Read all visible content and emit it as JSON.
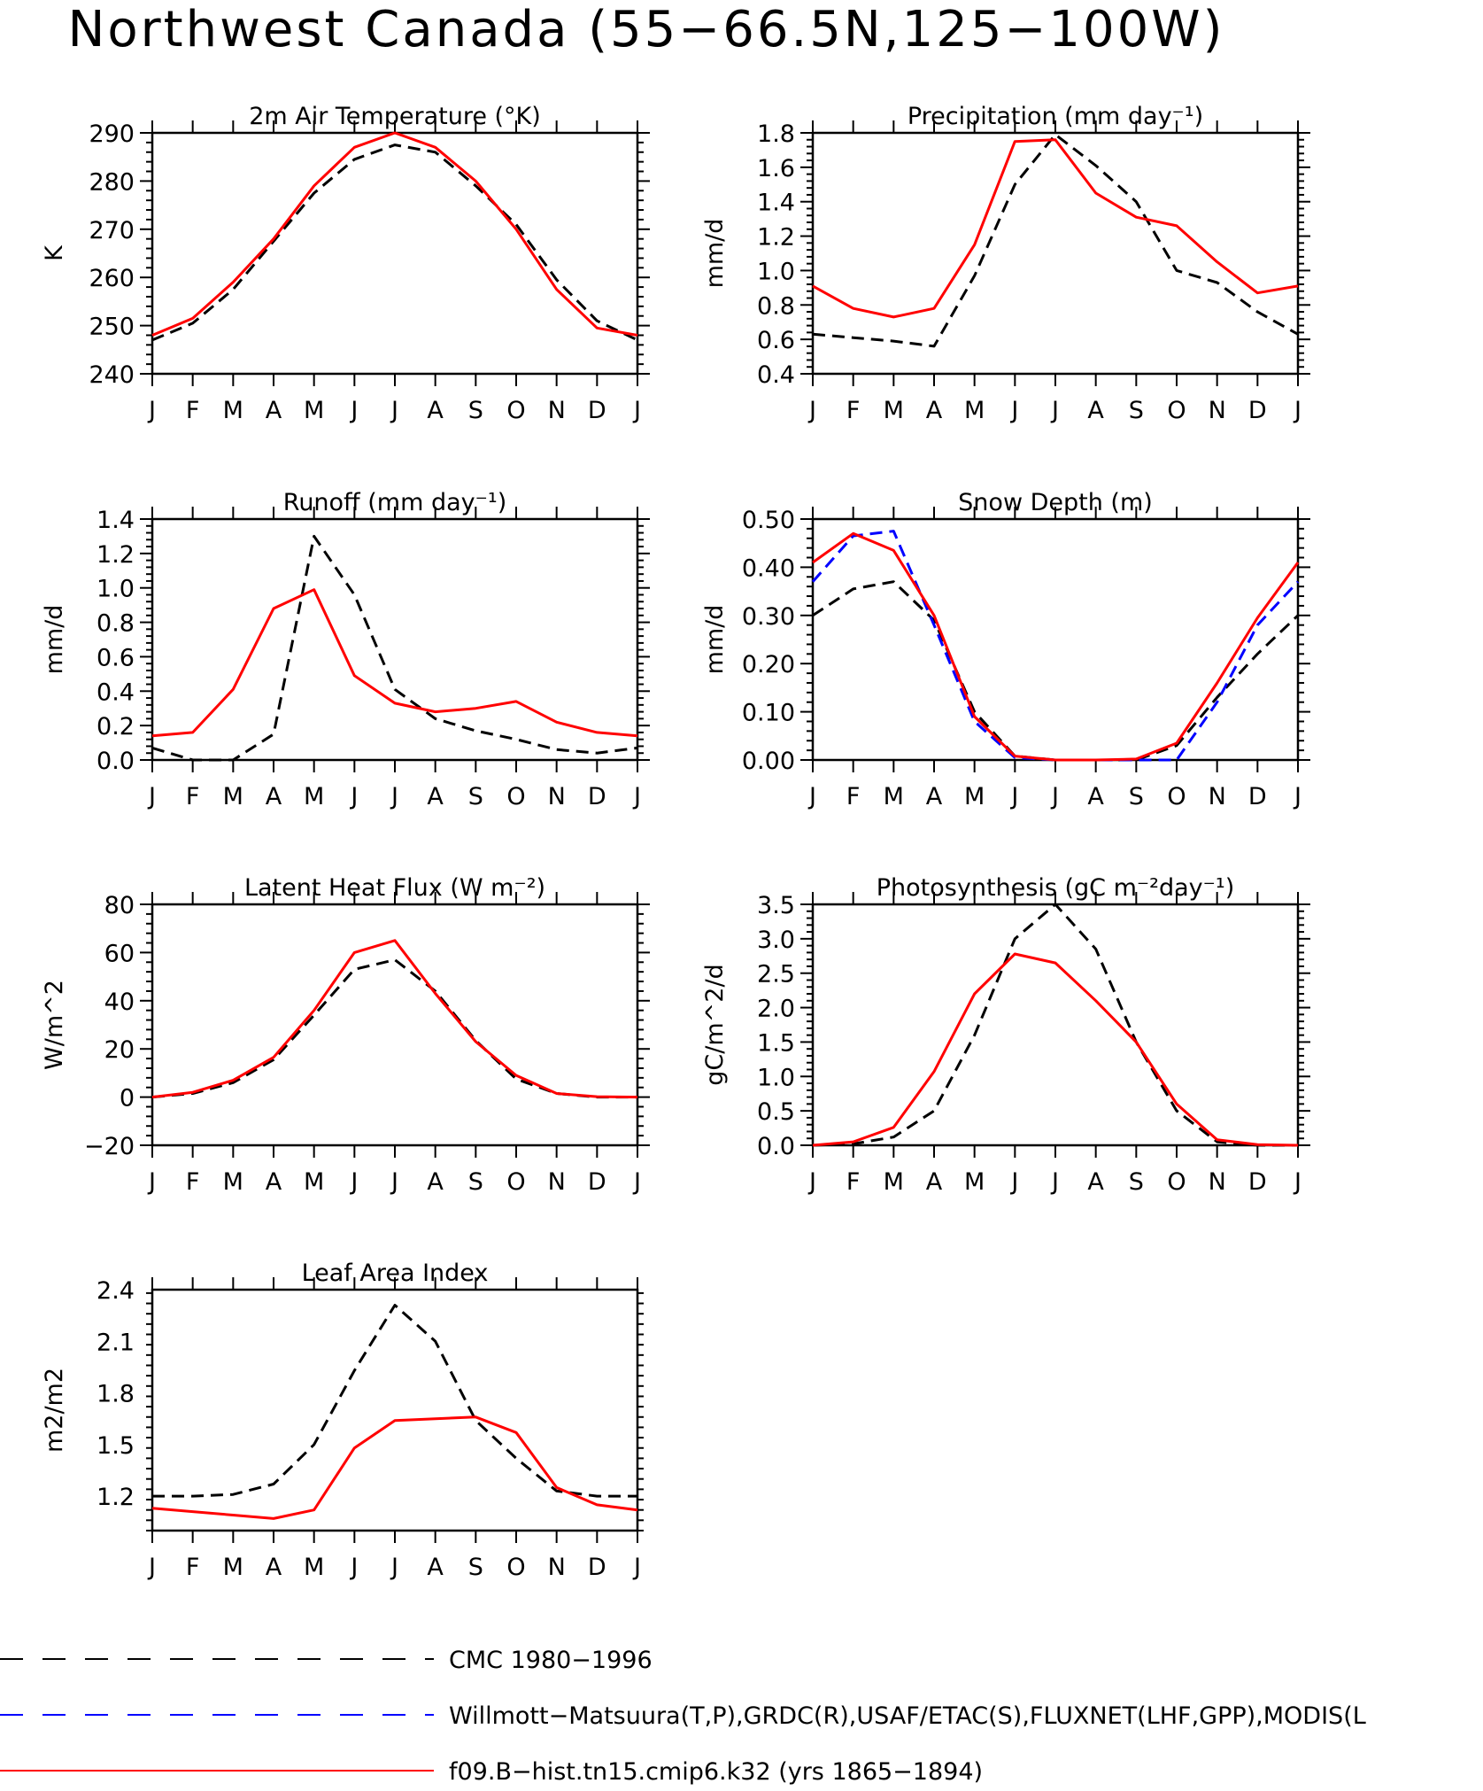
{
  "page": {
    "title": "Northwest Canada (55−66.5N,125−100W)"
  },
  "colors": {
    "cmc": "#000000",
    "obs": "#0000ff",
    "model": "#ff0000",
    "axis": "#000000"
  },
  "legend": [
    {
      "key": "cmc",
      "label": "CMC 1980−1996",
      "style": "long-dash"
    },
    {
      "key": "obs",
      "label": "Willmott−Matsuura(T,P),GRDC(R),USAF/ETAC(S),FLUXNET(LHF,GPP),MODIS(L",
      "style": "long-dash"
    },
    {
      "key": "model",
      "label": "f09.B−hist.tn15.cmip6.k32 (yrs 1865−1894)",
      "style": "solid"
    }
  ],
  "chart_data": [
    {
      "type": "line",
      "title": "2m Air Temperature (°K)",
      "xlabel": "",
      "ylabel": "K",
      "categories": [
        "J",
        "F",
        "M",
        "A",
        "M",
        "J",
        "J",
        "A",
        "S",
        "O",
        "N",
        "D",
        "J"
      ],
      "ylim": [
        240,
        290
      ],
      "yticks": [
        240,
        250,
        260,
        270,
        280,
        290
      ],
      "ytick_labels": [
        "240",
        "250",
        "260",
        "270",
        "280",
        "290"
      ],
      "series": [
        {
          "key": "cmc",
          "style": "dash",
          "values": [
            247,
            250.5,
            257.5,
            267.5,
            277.5,
            284.5,
            287.5,
            286,
            279,
            271,
            259.5,
            251,
            247
          ]
        },
        {
          "key": "model",
          "style": "solid",
          "values": [
            248,
            251.5,
            259,
            268,
            279,
            287,
            290,
            287,
            280,
            270,
            257.5,
            249.5,
            248
          ]
        }
      ]
    },
    {
      "type": "line",
      "title": "Precipitation (mm day⁻¹)",
      "xlabel": "",
      "ylabel": "mm/d",
      "categories": [
        "J",
        "F",
        "M",
        "A",
        "M",
        "J",
        "J",
        "A",
        "S",
        "O",
        "N",
        "D",
        "J"
      ],
      "ylim": [
        0.4,
        1.8
      ],
      "yticks": [
        0.4,
        0.6,
        0.8,
        1.0,
        1.2,
        1.4,
        1.6,
        1.8
      ],
      "ytick_labels": [
        "0.4",
        "0.6",
        "0.8",
        "1.0",
        "1.2",
        "1.4",
        "1.6",
        "1.8"
      ],
      "series": [
        {
          "key": "cmc",
          "style": "dash",
          "values": [
            0.63,
            0.61,
            0.59,
            0.56,
            0.97,
            1.5,
            1.79,
            1.61,
            1.4,
            1.0,
            0.93,
            0.76,
            0.63
          ]
        },
        {
          "key": "model",
          "style": "solid",
          "values": [
            0.91,
            0.78,
            0.73,
            0.78,
            1.15,
            1.75,
            1.76,
            1.45,
            1.31,
            1.26,
            1.05,
            0.87,
            0.91
          ]
        }
      ]
    },
    {
      "type": "line",
      "title": "Runoff (mm day⁻¹)",
      "xlabel": "",
      "ylabel": "mm/d",
      "categories": [
        "J",
        "F",
        "M",
        "A",
        "M",
        "J",
        "J",
        "A",
        "S",
        "O",
        "N",
        "D",
        "J"
      ],
      "ylim": [
        0,
        1.4
      ],
      "yticks": [
        0,
        0.2,
        0.4,
        0.6,
        0.8,
        1.0,
        1.2,
        1.4
      ],
      "ytick_labels": [
        "0.0",
        "0.2",
        "0.4",
        "0.6",
        "0.8",
        "1.0",
        "1.2",
        "1.4"
      ],
      "series": [
        {
          "key": "cmc",
          "style": "dash",
          "values": [
            0.07,
            0.0,
            0.0,
            0.15,
            1.3,
            0.96,
            0.41,
            0.24,
            0.17,
            0.12,
            0.06,
            0.04,
            0.07
          ]
        },
        {
          "key": "model",
          "style": "solid",
          "values": [
            0.14,
            0.16,
            0.41,
            0.88,
            0.99,
            0.49,
            0.33,
            0.28,
            0.3,
            0.34,
            0.22,
            0.16,
            0.14
          ]
        }
      ]
    },
    {
      "type": "line",
      "title": "Snow Depth (m)",
      "xlabel": "",
      "ylabel": "mm/d",
      "categories": [
        "J",
        "F",
        "M",
        "A",
        "M",
        "J",
        "J",
        "A",
        "S",
        "O",
        "N",
        "D",
        "J"
      ],
      "ylim": [
        0,
        0.5
      ],
      "yticks": [
        0,
        0.1,
        0.2,
        0.3,
        0.4,
        0.5
      ],
      "ytick_labels": [
        "0.00",
        "0.10",
        "0.20",
        "0.30",
        "0.40",
        "0.50"
      ],
      "series": [
        {
          "key": "cmc",
          "style": "dash",
          "values": [
            0.3,
            0.355,
            0.37,
            0.29,
            0.1,
            0.008,
            0.0,
            0.0,
            0.0,
            0.03,
            0.13,
            0.22,
            0.3
          ]
        },
        {
          "key": "obs",
          "style": "dash",
          "values": [
            0.37,
            0.465,
            0.475,
            0.28,
            0.08,
            0.005,
            0.0,
            0.0,
            0.0,
            0.0,
            0.12,
            0.28,
            0.37
          ]
        },
        {
          "key": "model",
          "style": "solid",
          "values": [
            0.41,
            0.47,
            0.435,
            0.3,
            0.09,
            0.008,
            0.0,
            0.0,
            0.002,
            0.035,
            0.16,
            0.295,
            0.41
          ]
        }
      ]
    },
    {
      "type": "line",
      "title": "Latent Heat Flux (W m⁻²)",
      "xlabel": "",
      "ylabel": "W/m^2",
      "categories": [
        "J",
        "F",
        "M",
        "A",
        "M",
        "J",
        "J",
        "A",
        "S",
        "O",
        "N",
        "D",
        "J"
      ],
      "ylim": [
        -20,
        80
      ],
      "yticks": [
        -20,
        0,
        20,
        40,
        60,
        80
      ],
      "ytick_labels": [
        "−20",
        "0",
        "20",
        "40",
        "60",
        "80"
      ],
      "series": [
        {
          "key": "cmc",
          "style": "dash",
          "values": [
            0,
            1.5,
            6,
            15.5,
            34,
            53,
            57,
            44,
            23.5,
            7.5,
            1.5,
            0,
            0
          ]
        },
        {
          "key": "model",
          "style": "solid",
          "values": [
            0,
            2,
            7,
            16.5,
            36,
            60,
            65,
            43,
            23,
            9,
            1.5,
            0.2,
            0
          ]
        }
      ]
    },
    {
      "type": "line",
      "title": "Photosynthesis (gC m⁻²day⁻¹)",
      "xlabel": "",
      "ylabel": "gC/m^2/d",
      "categories": [
        "J",
        "F",
        "M",
        "A",
        "M",
        "J",
        "J",
        "A",
        "S",
        "O",
        "N",
        "D",
        "J"
      ],
      "ylim": [
        0,
        3.5
      ],
      "yticks": [
        0,
        0.5,
        1.0,
        1.5,
        2.0,
        2.5,
        3.0,
        3.5
      ],
      "ytick_labels": [
        "0.0",
        "0.5",
        "1.0",
        "1.5",
        "2.0",
        "2.5",
        "3.0",
        "3.5"
      ],
      "series": [
        {
          "key": "cmc",
          "style": "dash",
          "values": [
            0.0,
            0.02,
            0.12,
            0.5,
            1.6,
            3.0,
            3.5,
            2.85,
            1.5,
            0.5,
            0.05,
            0.0,
            0.0
          ]
        },
        {
          "key": "model",
          "style": "solid",
          "values": [
            0.0,
            0.05,
            0.26,
            1.07,
            2.2,
            2.78,
            2.65,
            2.1,
            1.5,
            0.6,
            0.08,
            0.01,
            0.0
          ]
        }
      ]
    },
    {
      "type": "line",
      "title": "Leaf Area Index",
      "xlabel": "",
      "ylabel": "m2/m2",
      "categories": [
        "J",
        "F",
        "M",
        "A",
        "M",
        "J",
        "J",
        "A",
        "S",
        "O",
        "N",
        "D",
        "J"
      ],
      "ylim": [
        1.0,
        2.4
      ],
      "yticks": [
        1.2,
        1.5,
        1.8,
        2.1,
        2.4
      ],
      "ytick_labels": [
        "1.2",
        "1.5",
        "1.8",
        "2.1",
        "2.4"
      ],
      "series": [
        {
          "key": "cmc",
          "style": "dash",
          "values": [
            1.2,
            1.2,
            1.21,
            1.27,
            1.5,
            1.93,
            2.31,
            2.1,
            1.64,
            1.42,
            1.23,
            1.2,
            1.2
          ]
        },
        {
          "key": "model",
          "style": "solid",
          "values": [
            1.13,
            1.11,
            1.09,
            1.07,
            1.12,
            1.48,
            1.64,
            1.65,
            1.66,
            1.57,
            1.25,
            1.15,
            1.12
          ]
        }
      ]
    }
  ]
}
